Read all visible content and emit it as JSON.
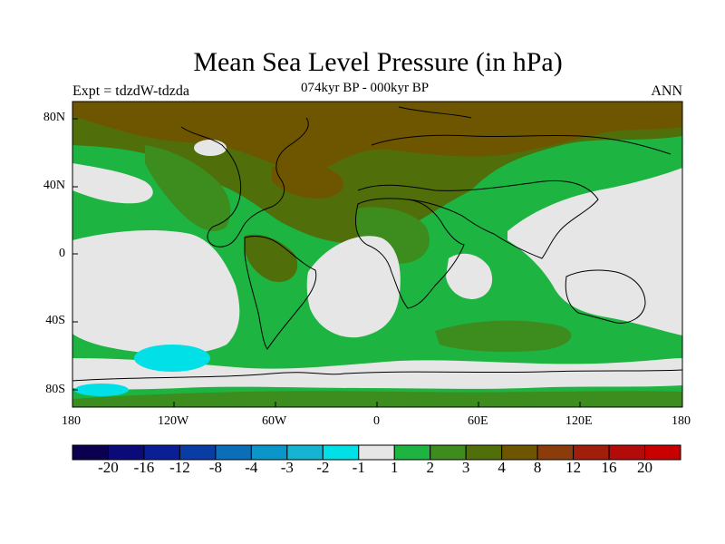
{
  "title": "Mean Sea Level Pressure (in hPa)",
  "experiment": "Expt = tdzdW-tdzda",
  "period": "074kyr BP - 000kyr BP",
  "season": "ANN",
  "lat_labels": [
    "80N",
    "40N",
    "0",
    "40S",
    "80S"
  ],
  "lon_labels": [
    "180",
    "120W",
    "60W",
    "0",
    "60E",
    "120E",
    "180"
  ],
  "colorbar": {
    "labels": [
      "-20",
      "-16",
      "-12",
      "-8",
      "-4",
      "-3",
      "-2",
      "-1",
      "1",
      "2",
      "3",
      "4",
      "8",
      "12",
      "16",
      "20"
    ],
    "colors": [
      "#0b0050",
      "#0a0a78",
      "#0a1e96",
      "#0a3ca5",
      "#0a6eb9",
      "#0a96c8",
      "#14b4d2",
      "#00e0e6",
      "#e6e6e6",
      "#1eb441",
      "#3c8c1e",
      "#506e0a",
      "#6e5500",
      "#8c3c0a",
      "#a01e0a",
      "#b40a0a",
      "#c80000"
    ]
  },
  "colors": {
    "neutral": "#e6e6e6",
    "green": "#1eb441",
    "olive": "#3c8c1e",
    "dark_olive": "#506e0a",
    "brown": "#6e5500",
    "cyan": "#00e0e6"
  }
}
